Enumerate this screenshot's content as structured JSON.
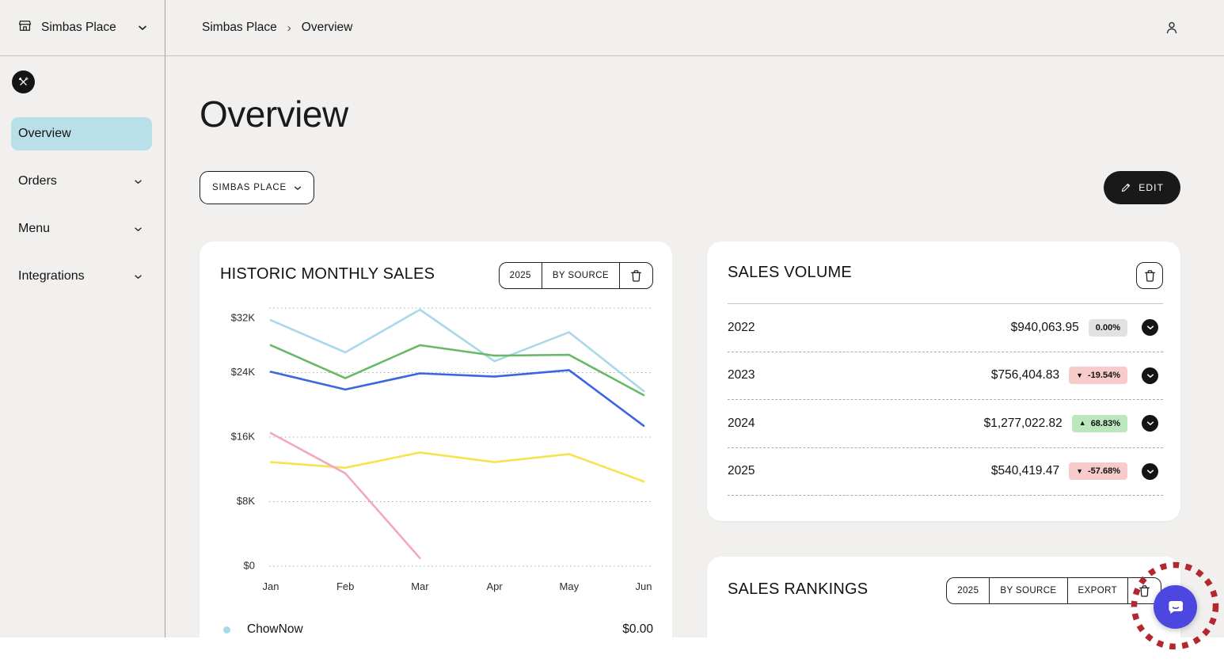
{
  "workspace": {
    "name": "Simbas Place"
  },
  "topbar": {
    "breadcrumb": [
      "Simbas Place",
      "Overview"
    ],
    "separator": "›"
  },
  "sidebar": {
    "items": [
      {
        "label": "Overview",
        "active": true
      },
      {
        "label": "Orders",
        "expandable": true
      },
      {
        "label": "Menu",
        "expandable": true
      },
      {
        "label": "Integrations",
        "expandable": true
      }
    ]
  },
  "page": {
    "title": "Overview",
    "location_selector": "SIMBAS PLACE",
    "edit_label": "EDIT"
  },
  "historic_card": {
    "title": "HISTORIC MONTHLY SALES",
    "controls": {
      "year": "2025",
      "group_by": "BY SOURCE"
    },
    "legend_row": {
      "label": "ChowNow",
      "value": "$0.00",
      "dot_color": "#a9d8e8"
    }
  },
  "chart_data": {
    "type": "line",
    "title": "HISTORIC MONTHLY SALES",
    "x": [
      "Jan",
      "Feb",
      "Mar",
      "Apr",
      "May",
      "Jun"
    ],
    "ylim": [
      0,
      32000
    ],
    "y_ticks": [
      0,
      8000,
      16000,
      24000,
      32000
    ],
    "y_tick_labels": [
      "$0",
      "$8K",
      "$16K",
      "$24K",
      "$32K"
    ],
    "grid": "horizontal-dotted",
    "legend_position": "below (list, mostly cut off)",
    "series": [
      {
        "name": "series-lightblue",
        "color": "#a9d8e8",
        "values": [
          30500,
          26500,
          31800,
          25400,
          29000,
          21700
        ]
      },
      {
        "name": "series-green",
        "color": "#67b968",
        "values": [
          27400,
          23300,
          27400,
          26100,
          26200,
          21200
        ]
      },
      {
        "name": "series-blue",
        "color": "#3a66df",
        "values": [
          24100,
          21900,
          23900,
          23500,
          24300,
          17400
        ]
      },
      {
        "name": "series-yellow",
        "color": "#f7e34f",
        "values": [
          12900,
          12200,
          14100,
          12900,
          13900,
          10500
        ]
      },
      {
        "name": "series-pink",
        "color": "#f2a8bf",
        "values": [
          16500,
          11500,
          1000,
          null,
          null,
          null
        ]
      }
    ]
  },
  "sales_volume": {
    "title": "SALES VOLUME",
    "rows": [
      {
        "year": "2022",
        "amount": "$940,063.95",
        "arrow": "",
        "change": "0.00%"
      },
      {
        "year": "2023",
        "amount": "$756,404.83",
        "arrow": "▼",
        "change": "-19.54%"
      },
      {
        "year": "2024",
        "amount": "$1,277,022.82",
        "arrow": "▲",
        "change": "68.83%"
      },
      {
        "year": "2025",
        "amount": "$540,419.47",
        "arrow": "▼",
        "change": "-57.68%"
      }
    ]
  },
  "sales_rankings": {
    "title": "SALES RANKINGS",
    "controls": {
      "year": "2025",
      "group_by": "BY SOURCE",
      "export": "EXPORT"
    }
  },
  "colors": {
    "page_background": "#f1f0ee",
    "sidebar_active_highlight": "#b9dfe9",
    "dark_button": "#191919",
    "badge_neutral_bg": "#e3e2e0",
    "badge_down_bg": "#f7cbca",
    "badge_up_bg": "#bce6bd",
    "chat_button": "#4b47e0",
    "annotation_ring": "#b2282e"
  },
  "icons": [
    "storefront-icon",
    "chevron-down-icon",
    "utensils-logo-icon",
    "user-icon",
    "pencil-icon",
    "trash-icon",
    "chat-bubble-icon",
    "breadcrumb-chevron-icon"
  ]
}
